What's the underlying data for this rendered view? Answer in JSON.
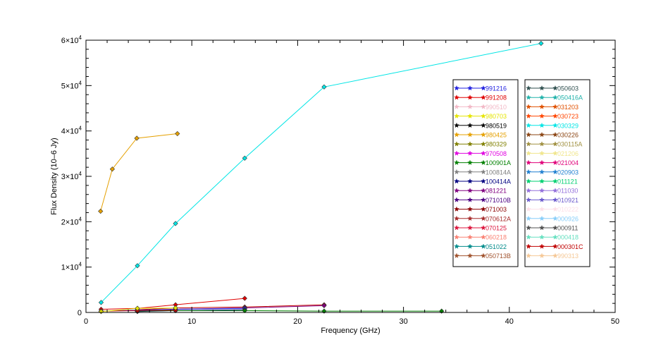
{
  "chart_data": {
    "type": "line",
    "xlabel": "Frequency (GHz)",
    "ylabel": "Flux Density (10–6 Jy)",
    "xlim": [
      0,
      50
    ],
    "ylim": [
      0,
      60000
    ],
    "x_ticks": [
      0,
      10,
      20,
      30,
      40,
      50
    ],
    "x_tick_labels": [
      "0",
      "10",
      "20",
      "30",
      "40",
      "50"
    ],
    "y_ticks": [
      0,
      10000,
      20000,
      30000,
      40000,
      50000,
      60000
    ],
    "y_tick_labels": [
      {
        "base": "0",
        "exp": ""
      },
      {
        "base": "1×10",
        "exp": "4"
      },
      {
        "base": "2×10",
        "exp": "4"
      },
      {
        "base": "3×10",
        "exp": "4"
      },
      {
        "base": "4×10",
        "exp": "4"
      },
      {
        "base": "5×10",
        "exp": "4"
      },
      {
        "base": "6×10",
        "exp": "4"
      }
    ],
    "grid": false,
    "legend_position": "right",
    "series": [
      {
        "name": "030329",
        "color": "#00e5e5",
        "marker": "diamond",
        "x": [
          1.43,
          4.86,
          8.46,
          15.0,
          22.5,
          43.0
        ],
        "y": [
          2200,
          10300,
          19600,
          34000,
          49700,
          59300
        ]
      },
      {
        "name": "980425",
        "color": "#e5a000",
        "marker": "diamond",
        "x": [
          1.38,
          2.49,
          4.8,
          8.64
        ],
        "y": [
          22300,
          31600,
          38400,
          39400
        ]
      },
      {
        "name": "991208",
        "color": "#e00000",
        "marker": "diamond",
        "x": [
          1.43,
          4.86,
          8.46,
          15.0
        ],
        "y": [
          700,
          900,
          1700,
          3100
        ]
      },
      {
        "name": "071003",
        "color": "#c00000",
        "marker": "diamond",
        "x": [
          4.86,
          8.46,
          15.0,
          22.5
        ],
        "y": [
          600,
          1000,
          1200,
          1700
        ]
      },
      {
        "name": "081221",
        "color": "#800080",
        "marker": "diamond",
        "x": [
          4.86,
          8.46,
          15.0,
          22.5
        ],
        "y": [
          300,
          700,
          1000,
          1500
        ]
      },
      {
        "name": "991216",
        "color": "#2020e0",
        "marker": "diamond",
        "x": [
          1.43,
          4.86,
          8.46,
          15.0
        ],
        "y": [
          300,
          500,
          700,
          900
        ]
      },
      {
        "name": "100414A",
        "color": "#000080",
        "marker": "diamond",
        "x": [
          4.86,
          8.46,
          15.0
        ],
        "y": [
          200,
          400,
          600
        ]
      },
      {
        "name": "100901A",
        "color": "#008000",
        "marker": "diamond",
        "x": [
          4.86,
          8.46,
          15.0,
          22.5,
          33.6
        ],
        "y": [
          300,
          400,
          400,
          300,
          300
        ]
      },
      {
        "name": "000301C",
        "color": "#c00000",
        "marker": "diamond",
        "x": [
          1.43,
          4.86,
          8.46
        ],
        "y": [
          300,
          400,
          500
        ]
      },
      {
        "name": "980703",
        "color": "#e5e500",
        "marker": "diamond",
        "x": [
          1.43,
          4.86,
          8.46
        ],
        "y": [
          200,
          900,
          1000
        ]
      }
    ],
    "legend_columns": [
      [
        {
          "name": "991216",
          "color": "#2020e0"
        },
        {
          "name": "991208",
          "color": "#e00000"
        },
        {
          "name": "990510",
          "color": "#f2b8c6"
        },
        {
          "name": "980703",
          "color": "#e5e500"
        },
        {
          "name": "980519",
          "color": "#000000"
        },
        {
          "name": "980425",
          "color": "#e5a000"
        },
        {
          "name": "980329",
          "color": "#808000"
        },
        {
          "name": "970508",
          "color": "#e000e0"
        },
        {
          "name": "100901A",
          "color": "#008000"
        },
        {
          "name": "100814A",
          "color": "#808080"
        },
        {
          "name": "100414A",
          "color": "#000080"
        },
        {
          "name": "081221",
          "color": "#800080"
        },
        {
          "name": "071010B",
          "color": "#4b0082"
        },
        {
          "name": "071003",
          "color": "#8b0000"
        },
        {
          "name": "070612A",
          "color": "#a52a2a"
        },
        {
          "name": "070125",
          "color": "#dc143c"
        },
        {
          "name": "060218",
          "color": "#fa8072"
        },
        {
          "name": "051022",
          "color": "#008b8b"
        },
        {
          "name": "050713B",
          "color": "#a0522d"
        }
      ],
      [
        {
          "name": "050603",
          "color": "#2f4f4f"
        },
        {
          "name": "050416A",
          "color": "#20b2aa"
        },
        {
          "name": "031203",
          "color": "#e05000"
        },
        {
          "name": "030723",
          "color": "#ff4500"
        },
        {
          "name": "030329",
          "color": "#00e5e5"
        },
        {
          "name": "030226",
          "color": "#8b4513"
        },
        {
          "name": "030115A",
          "color": "#a09040"
        },
        {
          "name": "021206",
          "color": "#f0e68c"
        },
        {
          "name": "021004",
          "color": "#e0007a"
        },
        {
          "name": "020903",
          "color": "#1e7fd0"
        },
        {
          "name": "011121",
          "color": "#00d070"
        },
        {
          "name": "011030",
          "color": "#9370db"
        },
        {
          "name": "010921",
          "color": "#6a5acd"
        },
        {
          "name": "010222",
          "color": "#fde0e8"
        },
        {
          "name": "000926",
          "color": "#87cefa"
        },
        {
          "name": "000911",
          "color": "#505050"
        },
        {
          "name": "000418",
          "color": "#66e0c0"
        },
        {
          "name": "000301C",
          "color": "#c00000"
        },
        {
          "name": "990313",
          "color": "#f5c896"
        }
      ]
    ]
  }
}
